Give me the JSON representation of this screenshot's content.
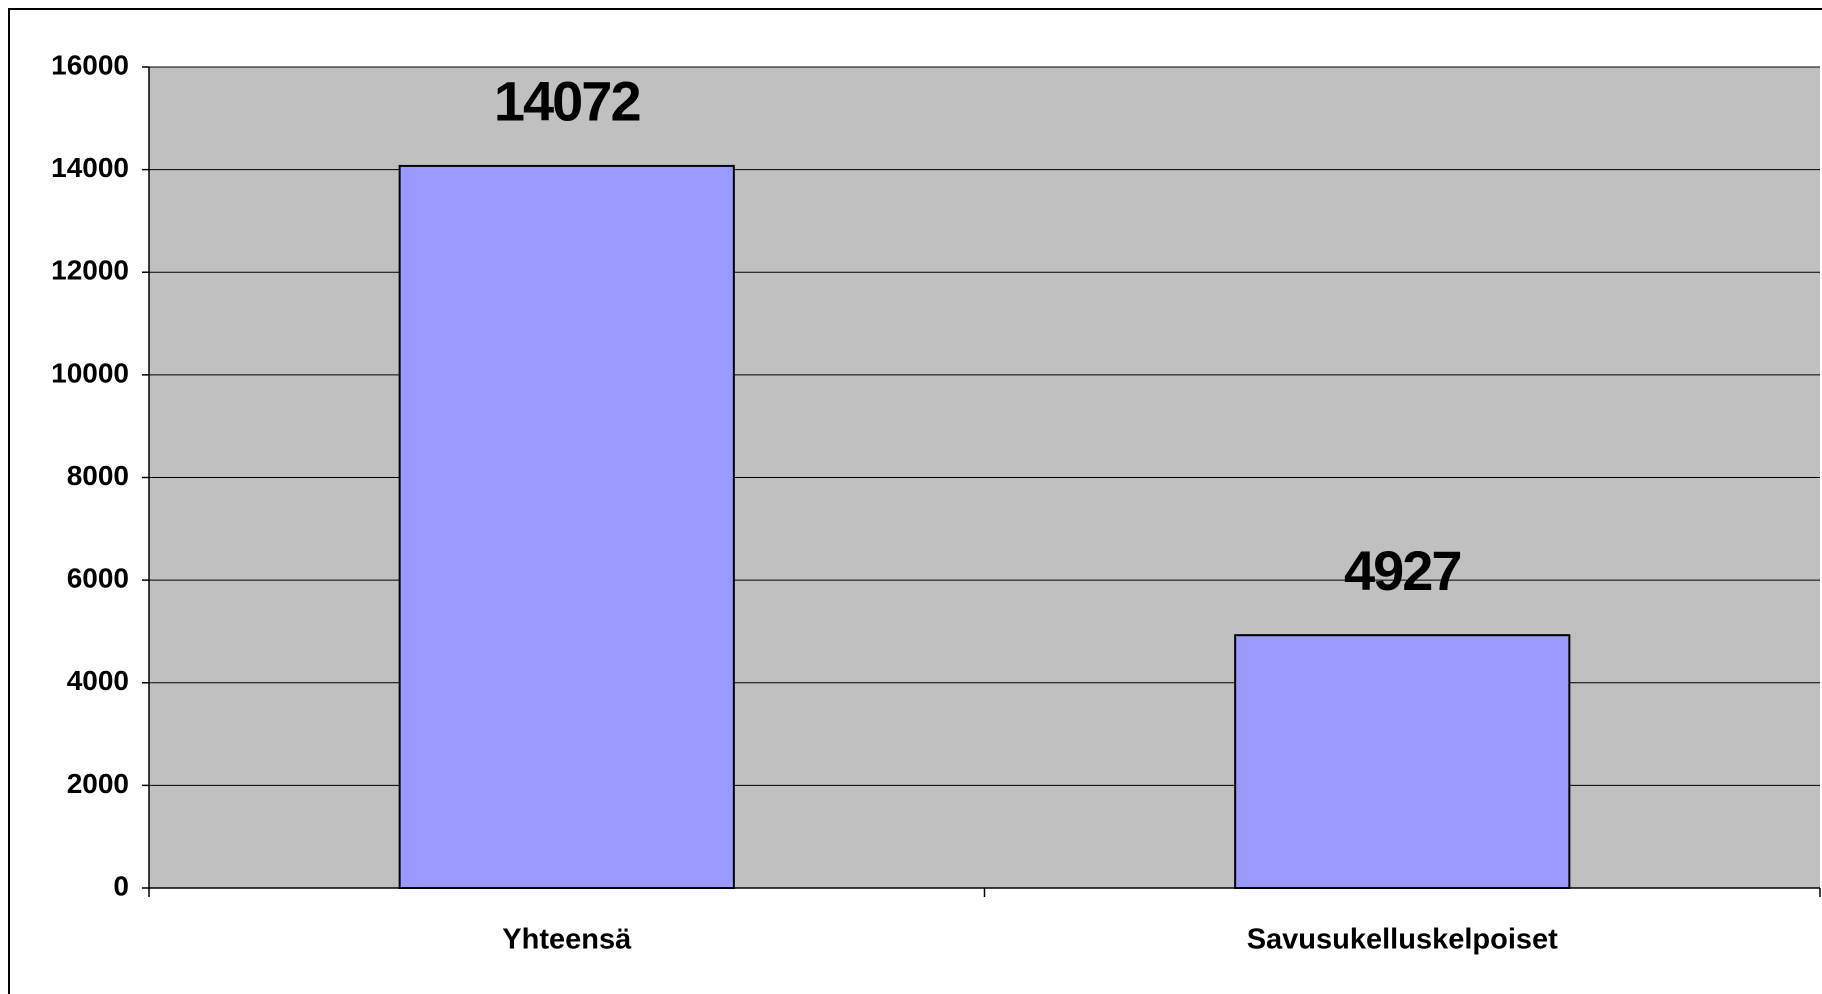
{
  "chart_data": {
    "type": "bar",
    "categories": [
      "Yhteensä",
      "Savusukelluskelpoiset"
    ],
    "values": [
      14072,
      4927
    ],
    "color": "#9999ff",
    "ylim": [
      0,
      16000
    ],
    "yticks": [
      0,
      2000,
      4000,
      6000,
      8000,
      10000,
      12000,
      14000,
      16000
    ],
    "grid": true,
    "data_labels": true
  }
}
